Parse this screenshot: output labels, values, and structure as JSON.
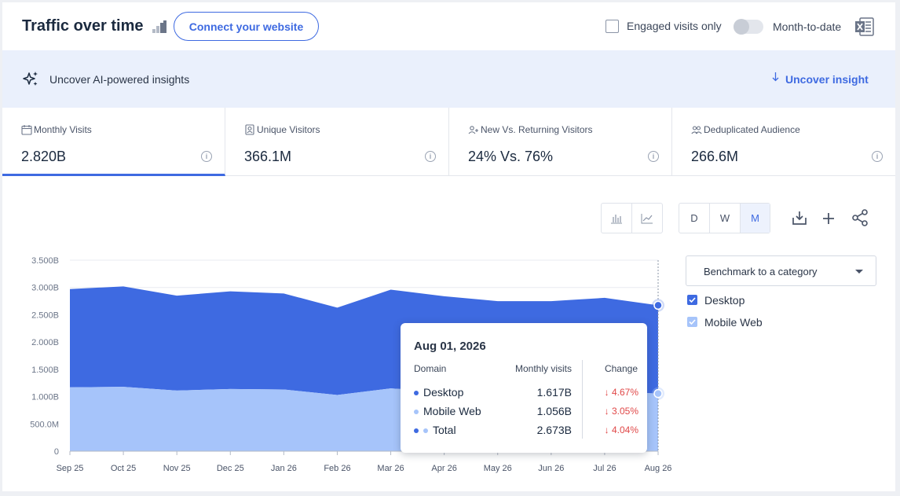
{
  "header": {
    "title": "Traffic over time",
    "connect_label": "Connect your website",
    "engaged_label": "Engaged visits only",
    "month_to_date_label": "Month-to-date"
  },
  "insight": {
    "text": "Uncover AI-powered insights",
    "link": "Uncover insight"
  },
  "metrics": [
    {
      "label": "Monthly Visits",
      "value": "2.820B",
      "icon": "calendar-icon",
      "active": true
    },
    {
      "label": "Unique Visitors",
      "value": "366.1M",
      "icon": "user-badge-icon",
      "active": false
    },
    {
      "label": "New Vs. Returning Visitors",
      "value": "24% Vs. 76%",
      "icon": "user-plus-icon",
      "active": false
    },
    {
      "label": "Deduplicated Audience",
      "value": "266.6M",
      "icon": "users-icon",
      "active": false
    }
  ],
  "granularity": {
    "options": [
      "D",
      "W",
      "M"
    ],
    "selected": "M"
  },
  "benchmark": {
    "label": "Benchmark to a category"
  },
  "legend": [
    {
      "name": "Desktop",
      "color": "#3e6ae1",
      "checked": true
    },
    {
      "name": "Mobile Web",
      "color": "#a6c4fa",
      "checked": true
    }
  ],
  "tooltip": {
    "date": "Aug 01, 2026",
    "col_domain": "Domain",
    "col_visits": "Monthly visits",
    "col_change": "Change",
    "rows": [
      {
        "name": "Desktop",
        "value": "1.617B",
        "change": "4.67%",
        "direction": "down"
      },
      {
        "name": "Mobile Web",
        "value": "1.056B",
        "change": "3.05%",
        "direction": "down"
      },
      {
        "name": "Total",
        "value": "2.673B",
        "change": "4.04%",
        "direction": "down"
      }
    ]
  },
  "colors": {
    "accent": "#3e6ae1",
    "desktop": "#3e6ae1",
    "mobile": "#a6c4fa",
    "down": "#e04848"
  },
  "chart_data": {
    "type": "area",
    "stacked": true,
    "categories": [
      "Sep 25",
      "Oct 25",
      "Nov 25",
      "Dec 25",
      "Jan 26",
      "Feb 26",
      "Mar 26",
      "Apr 26",
      "May 26",
      "Jun 26",
      "Jul 26",
      "Aug 26"
    ],
    "series": [
      {
        "name": "Mobile Web",
        "values": [
          1.17,
          1.18,
          1.11,
          1.14,
          1.13,
          1.03,
          1.15,
          1.09,
          1.1,
          1.09,
          1.09,
          1.056
        ]
      },
      {
        "name": "Desktop",
        "values": [
          1.8,
          1.84,
          1.74,
          1.79,
          1.76,
          1.6,
          1.81,
          1.75,
          1.65,
          1.66,
          1.72,
          1.617
        ]
      }
    ],
    "ytick_labels": [
      "0",
      "500.0M",
      "1.000B",
      "1.500B",
      "2.000B",
      "2.500B",
      "3.000B",
      "3.500B"
    ],
    "ytick_values": [
      0,
      0.5,
      1.0,
      1.5,
      2.0,
      2.5,
      3.0,
      3.5
    ],
    "ylim": [
      0,
      3.5
    ],
    "grid": true,
    "legend_position": "right"
  }
}
